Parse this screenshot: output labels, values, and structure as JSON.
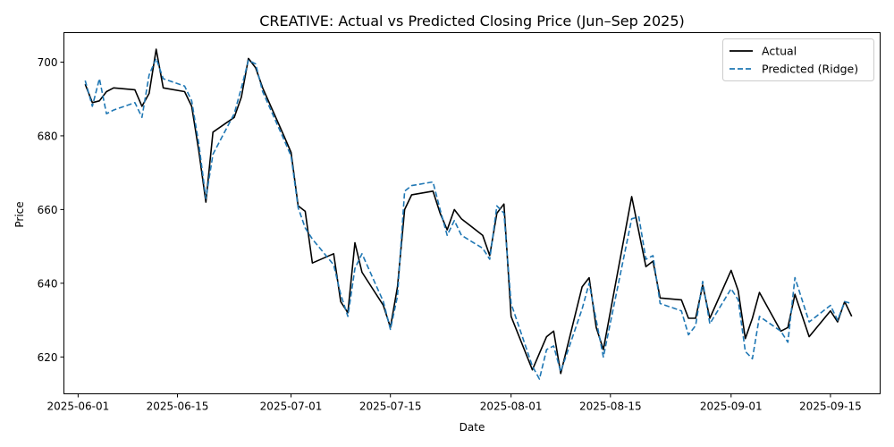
{
  "chart_data": {
    "type": "line",
    "title": "CREATIVE: Actual vs Predicted Closing Price (Jun–Sep 2025)",
    "xlabel": "Date",
    "ylabel": "Price",
    "xlim": [
      "2025-05-30",
      "2025-09-22"
    ],
    "ylim": [
      610,
      708
    ],
    "x_ticks": [
      "2025-06-01",
      "2025-06-15",
      "2025-07-01",
      "2025-07-15",
      "2025-08-01",
      "2025-08-15",
      "2025-09-01",
      "2025-09-15"
    ],
    "y_ticks": [
      620,
      640,
      660,
      680,
      700
    ],
    "grid": false,
    "legend_position": "top-right",
    "series": [
      {
        "name": "Actual",
        "color": "#000000",
        "style": "solid",
        "points": [
          [
            "2025-06-02",
            694
          ],
          [
            "2025-06-03",
            689
          ],
          [
            "2025-06-04",
            689.5
          ],
          [
            "2025-06-05",
            692
          ],
          [
            "2025-06-06",
            693
          ],
          [
            "2025-06-09",
            692.5
          ],
          [
            "2025-06-10",
            688
          ],
          [
            "2025-06-11",
            691.5
          ],
          [
            "2025-06-12",
            703.5
          ],
          [
            "2025-06-13",
            693
          ],
          [
            "2025-06-16",
            692
          ],
          [
            "2025-06-17",
            688
          ],
          [
            "2025-06-18",
            676
          ],
          [
            "2025-06-19",
            662
          ],
          [
            "2025-06-20",
            681
          ],
          [
            "2025-06-23",
            685
          ],
          [
            "2025-06-24",
            690.5
          ],
          [
            "2025-06-25",
            701
          ],
          [
            "2025-06-26",
            698.5
          ],
          [
            "2025-06-27",
            693
          ],
          [
            "2025-06-30",
            680
          ],
          [
            "2025-07-01",
            675.5
          ],
          [
            "2025-07-02",
            661
          ],
          [
            "2025-07-03",
            659.5
          ],
          [
            "2025-07-04",
            645.5
          ],
          [
            "2025-07-07",
            648
          ],
          [
            "2025-07-08",
            635
          ],
          [
            "2025-07-09",
            632
          ],
          [
            "2025-07-10",
            651
          ],
          [
            "2025-07-11",
            643
          ],
          [
            "2025-07-14",
            634
          ],
          [
            "2025-07-15",
            628
          ],
          [
            "2025-07-16",
            639
          ],
          [
            "2025-07-17",
            660
          ],
          [
            "2025-07-18",
            664
          ],
          [
            "2025-07-21",
            665
          ],
          [
            "2025-07-22",
            659
          ],
          [
            "2025-07-23",
            654.5
          ],
          [
            "2025-07-24",
            660
          ],
          [
            "2025-07-25",
            657.5
          ],
          [
            "2025-07-28",
            653
          ],
          [
            "2025-07-29",
            647.5
          ],
          [
            "2025-07-30",
            659
          ],
          [
            "2025-07-31",
            661.5
          ],
          [
            "2025-08-01",
            631
          ],
          [
            "2025-08-04",
            616.5
          ],
          [
            "2025-08-05",
            621
          ],
          [
            "2025-08-06",
            625.5
          ],
          [
            "2025-08-07",
            627
          ],
          [
            "2025-08-08",
            615.5
          ],
          [
            "2025-08-11",
            639
          ],
          [
            "2025-08-12",
            641.5
          ],
          [
            "2025-08-13",
            628
          ],
          [
            "2025-08-14",
            622
          ],
          [
            "2025-08-18",
            663.5
          ],
          [
            "2025-08-20",
            644.5
          ],
          [
            "2025-08-21",
            646
          ],
          [
            "2025-08-22",
            636
          ],
          [
            "2025-08-25",
            635.5
          ],
          [
            "2025-08-26",
            630.5
          ],
          [
            "2025-08-27",
            630.5
          ],
          [
            "2025-08-28",
            639.5
          ],
          [
            "2025-08-29",
            630.5
          ],
          [
            "2025-09-01",
            643.5
          ],
          [
            "2025-09-02",
            638
          ],
          [
            "2025-09-03",
            625
          ],
          [
            "2025-09-04",
            630.5
          ],
          [
            "2025-09-05",
            637.5
          ],
          [
            "2025-09-08",
            627
          ],
          [
            "2025-09-09",
            628
          ],
          [
            "2025-09-10",
            637
          ],
          [
            "2025-09-12",
            625.5
          ],
          [
            "2025-09-15",
            632.5
          ],
          [
            "2025-09-16",
            629.5
          ],
          [
            "2025-09-17",
            635
          ],
          [
            "2025-09-18",
            631
          ]
        ]
      },
      {
        "name": "Predicted (Ridge)",
        "color": "#1f77b4",
        "style": "dashed",
        "points": [
          [
            "2025-06-02",
            695
          ],
          [
            "2025-06-03",
            688
          ],
          [
            "2025-06-04",
            695.5
          ],
          [
            "2025-06-05",
            686
          ],
          [
            "2025-06-06",
            687
          ],
          [
            "2025-06-09",
            689
          ],
          [
            "2025-06-10",
            685
          ],
          [
            "2025-06-11",
            696.5
          ],
          [
            "2025-06-12",
            701
          ],
          [
            "2025-06-13",
            695.5
          ],
          [
            "2025-06-16",
            693.5
          ],
          [
            "2025-06-17",
            689.5
          ],
          [
            "2025-06-18",
            678
          ],
          [
            "2025-06-19",
            663
          ],
          [
            "2025-06-20",
            675
          ],
          [
            "2025-06-23",
            686
          ],
          [
            "2025-06-24",
            693
          ],
          [
            "2025-06-25",
            700.5
          ],
          [
            "2025-06-26",
            699.5
          ],
          [
            "2025-06-27",
            692
          ],
          [
            "2025-06-30",
            679
          ],
          [
            "2025-07-01",
            674.5
          ],
          [
            "2025-07-02",
            660.5
          ],
          [
            "2025-07-03",
            655
          ],
          [
            "2025-07-04",
            652
          ],
          [
            "2025-07-07",
            645
          ],
          [
            "2025-07-08",
            637
          ],
          [
            "2025-07-09",
            631
          ],
          [
            "2025-07-10",
            644
          ],
          [
            "2025-07-11",
            648
          ],
          [
            "2025-07-14",
            635
          ],
          [
            "2025-07-15",
            627.5
          ],
          [
            "2025-07-16",
            636.5
          ],
          [
            "2025-07-17",
            665
          ],
          [
            "2025-07-18",
            666.5
          ],
          [
            "2025-07-21",
            667.5
          ],
          [
            "2025-07-22",
            660
          ],
          [
            "2025-07-23",
            653
          ],
          [
            "2025-07-24",
            657
          ],
          [
            "2025-07-25",
            653
          ],
          [
            "2025-07-28",
            649.5
          ],
          [
            "2025-07-29",
            646.5
          ],
          [
            "2025-07-30",
            661
          ],
          [
            "2025-07-31",
            659
          ],
          [
            "2025-08-01",
            634.5
          ],
          [
            "2025-08-04",
            617.5
          ],
          [
            "2025-08-05",
            614
          ],
          [
            "2025-08-06",
            622
          ],
          [
            "2025-08-07",
            623
          ],
          [
            "2025-08-08",
            616
          ],
          [
            "2025-08-11",
            633
          ],
          [
            "2025-08-12",
            640
          ],
          [
            "2025-08-13",
            630
          ],
          [
            "2025-08-14",
            620
          ],
          [
            "2025-08-18",
            657.5
          ],
          [
            "2025-08-19",
            658
          ],
          [
            "2025-08-20",
            646.5
          ],
          [
            "2025-08-21",
            647.5
          ],
          [
            "2025-08-22",
            634.5
          ],
          [
            "2025-08-25",
            632.5
          ],
          [
            "2025-08-26",
            626
          ],
          [
            "2025-08-27",
            628.5
          ],
          [
            "2025-08-28",
            640.5
          ],
          [
            "2025-08-29",
            629
          ],
          [
            "2025-09-01",
            638.5
          ],
          [
            "2025-09-02",
            635.5
          ],
          [
            "2025-09-03",
            621.5
          ],
          [
            "2025-09-04",
            619.5
          ],
          [
            "2025-09-05",
            631
          ],
          [
            "2025-09-08",
            627
          ],
          [
            "2025-09-09",
            624
          ],
          [
            "2025-09-10",
            641.5
          ],
          [
            "2025-09-12",
            629.5
          ],
          [
            "2025-09-15",
            634
          ],
          [
            "2025-09-16",
            630
          ],
          [
            "2025-09-17",
            635
          ],
          [
            "2025-09-18",
            634.5
          ]
        ]
      }
    ]
  }
}
